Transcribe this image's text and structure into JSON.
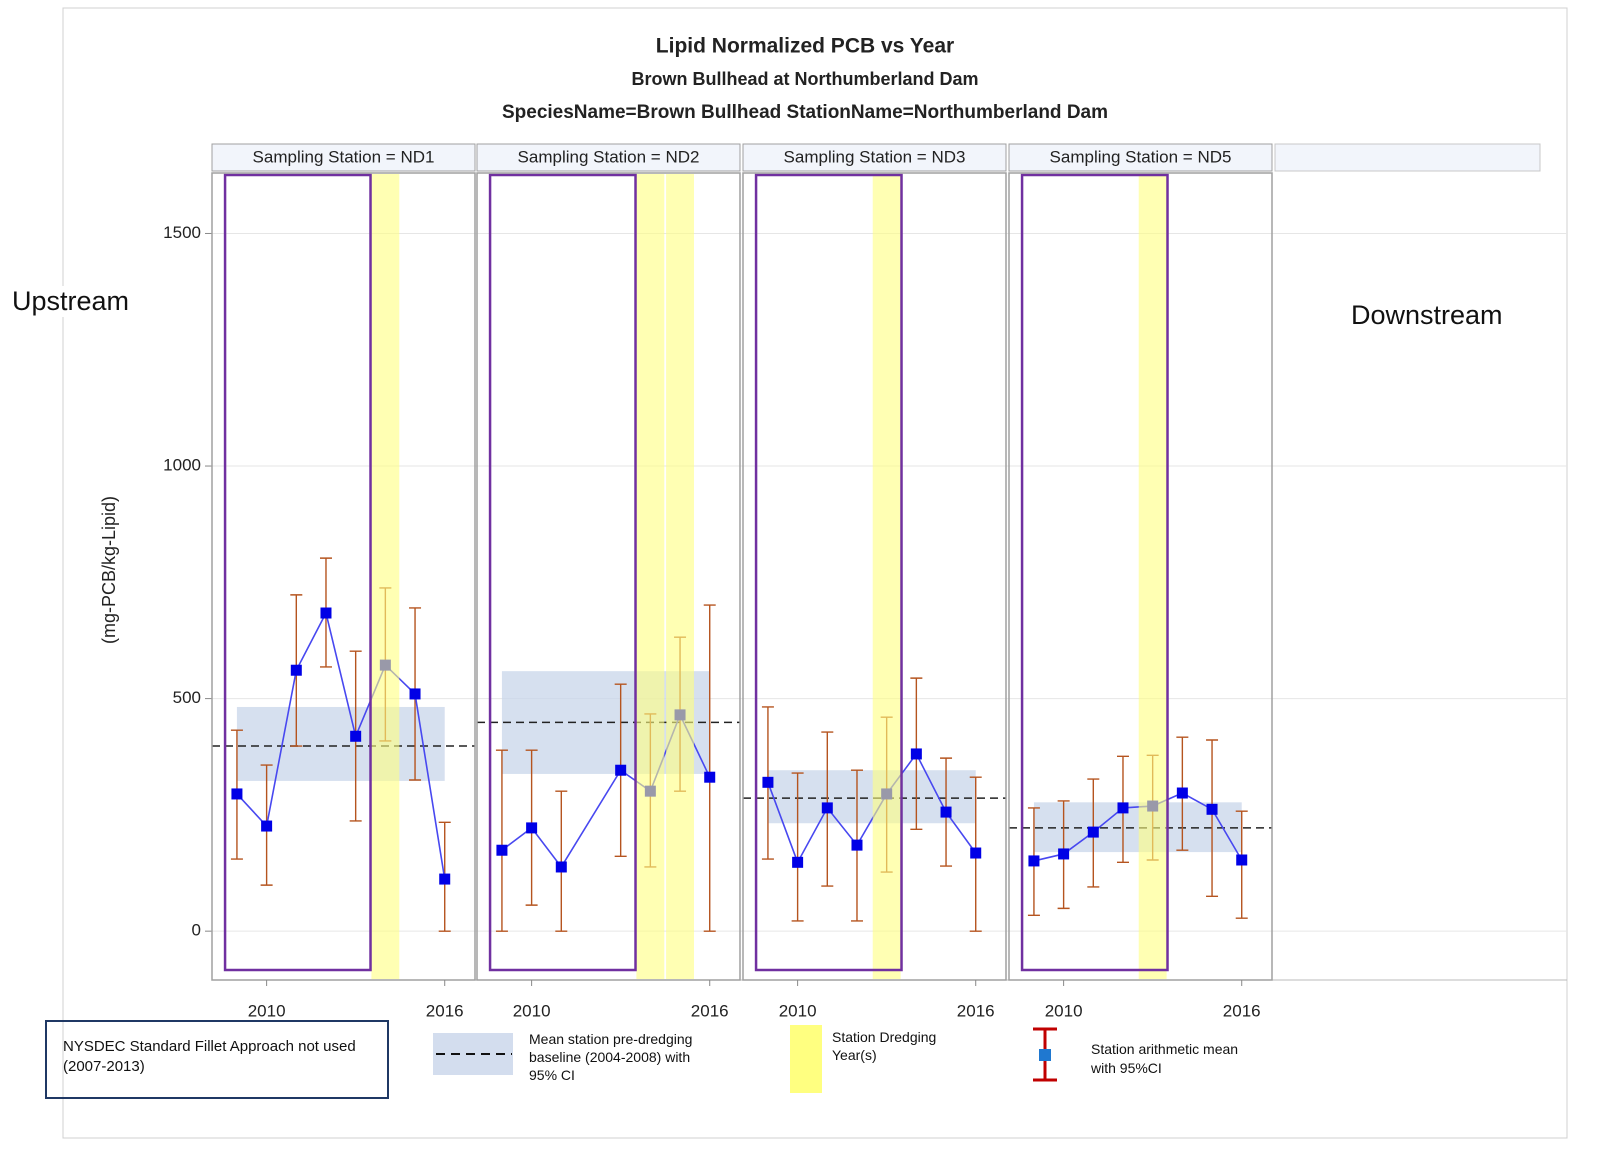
{
  "chart_data": {
    "type": "line",
    "title": "Lipid Normalized PCB vs Year",
    "subtitle": "Brown Bullhead at Northumberland Dam",
    "subtitle2": "SpeciesName=Brown Bullhead StationName=Northumberland Dam",
    "y_label": "(mg-PCB/kg-Lipid)",
    "ylim": [
      -105,
      1630
    ],
    "yticks": [
      0,
      500,
      1000,
      1500
    ],
    "xlim": [
      2008.16,
      2017.02
    ],
    "xticks": [
      2010,
      2016
    ],
    "grid": true,
    "line_color": "#4848f0",
    "marker_color": "#0000e6",
    "ci_color": "#b5541f",
    "band_color": "#c8d5ea",
    "dredge_color": "#ffff80",
    "box_color": "#7030a0",
    "annotations": [
      "Upstream",
      "Downstream"
    ],
    "legend": [
      "NYSDEC Standard Fillet Approach not used (2007-2013)",
      "Mean station pre-dredging baseline (2004-2008) with 95% CI",
      "Station Dredging Year(s)",
      "Station arithmetic mean with 95%CI"
    ],
    "panels": [
      {
        "title": "Sampling Station = ND1",
        "x": [
          2009,
          2010,
          2011,
          2012,
          2013,
          2014,
          2015,
          2016
        ],
        "values": [
          295,
          226,
          561,
          684,
          419,
          572,
          510,
          112
        ],
        "ci_upper": [
          432,
          357,
          723,
          802,
          602,
          738,
          695,
          234
        ],
        "ci_lower": [
          155,
          99,
          398,
          568,
          237,
          409,
          325,
          0
        ],
        "baseline": 398,
        "baseline_ci": [
          323,
          482
        ],
        "dredging_years": [
          2014
        ],
        "fillet_box": [
          2008.6,
          2013.5
        ]
      },
      {
        "title": "Sampling Station = ND2",
        "x": [
          2009,
          2010,
          2011,
          2013,
          2014,
          2015,
          2016
        ],
        "values": [
          174,
          222,
          138,
          346,
          301,
          465,
          331
        ],
        "ci_upper": [
          389,
          389,
          301,
          531,
          467,
          632,
          701
        ],
        "ci_lower": [
          0,
          56,
          0,
          161,
          138,
          301,
          0
        ],
        "baseline": 449,
        "baseline_ci": [
          338,
          559
        ],
        "dredging_years": [
          2014,
          2015
        ],
        "fillet_box": [
          2008.6,
          2013.5
        ]
      },
      {
        "title": "Sampling Station = ND3",
        "x": [
          2009,
          2010,
          2011,
          2012,
          2013,
          2014,
          2015,
          2016
        ],
        "values": [
          320,
          148,
          265,
          185,
          295,
          381,
          256,
          168
        ],
        "ci_upper": [
          482,
          340,
          428,
          346,
          460,
          544,
          372,
          331
        ],
        "ci_lower": [
          155,
          22,
          97,
          22,
          127,
          219,
          140,
          0
        ],
        "baseline": 286,
        "baseline_ci": [
          232,
          346
        ],
        "dredging_years": [
          2013
        ],
        "fillet_box": [
          2008.6,
          2013.5
        ]
      },
      {
        "title": "Sampling Station = ND5",
        "x": [
          2009,
          2010,
          2011,
          2012,
          2013,
          2014,
          2015,
          2016
        ],
        "values": [
          151,
          166,
          213,
          265,
          269,
          297,
          262,
          153
        ],
        "ci_upper": [
          265,
          280,
          327,
          376,
          378,
          417,
          411,
          258
        ],
        "ci_lower": [
          34,
          49,
          95,
          148,
          153,
          174,
          75,
          28
        ],
        "baseline": 222,
        "baseline_ci": [
          170,
          277
        ],
        "dredging_years": [
          2013
        ],
        "fillet_box": [
          2008.6,
          2013.5
        ]
      }
    ]
  }
}
